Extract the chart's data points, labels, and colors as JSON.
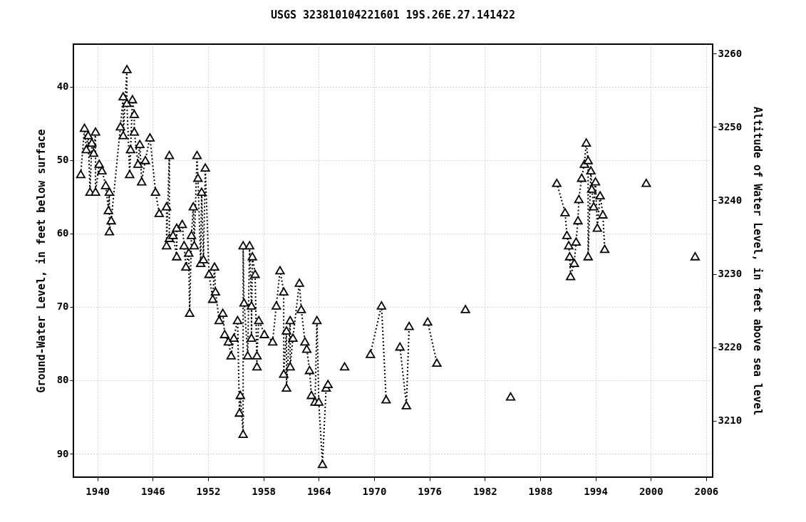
{
  "chart_data": {
    "type": "line",
    "title": "USGS 323810104221601 19S.26E.27.141422",
    "ylabel": "Ground-Water Level, in feet below surface",
    "y2label": "Altitude of Water Level, in feet above sea level",
    "xlim": [
      1937.4,
      2006.7
    ],
    "xticks": [
      1940,
      1946,
      1952,
      1958,
      1964,
      1970,
      1976,
      1982,
      1988,
      1994,
      2000,
      2006
    ],
    "ylim": [
      93.2,
      34.2
    ],
    "yticks": [
      40,
      50,
      60,
      70,
      80,
      90
    ],
    "y2lim": [
      3202.3,
      3261.3
    ],
    "y2ticks": [
      3210,
      3220,
      3230,
      3240,
      3250,
      3260
    ],
    "grid": true,
    "marker": "triangle",
    "line_style": "dotted",
    "series": [
      {
        "color": "#000000",
        "x": [
          1938.2,
          1938.6,
          1938.8,
          1939.0,
          1939.2,
          1939.4,
          1939.6,
          1939.8,
          1939.8,
          1940.2,
          1940.5,
          1940.9,
          1941.2,
          1941.3,
          1941.3,
          1941.5,
          1942.5,
          1942.8,
          1942.8,
          1943.2,
          1943.2,
          1943.5,
          1943.6,
          1943.8,
          1944.0,
          1944.0,
          1944.4,
          1944.6,
          1944.8,
          1945.2,
          1945.7,
          1946.3,
          1946.7,
          1947.5,
          1947.5,
          1947.8,
          1947.8,
          1948.2,
          1948.6,
          1948.6,
          1949.2,
          1949.4,
          1949.6,
          1949.9,
          1950.0,
          1950.2,
          1950.4,
          1950.5,
          1950.8,
          1950.9,
          1951.2,
          1951.3,
          1951.5,
          1951.7,
          1952.1,
          1952.5,
          1952.7,
          1952.8,
          1953.2,
          1953.6,
          1953.8,
          1954.2,
          1954.5,
          1954.8,
          1955.2,
          1955.4,
          1955.5,
          1955.8,
          1955.8,
          1955.9,
          1956.3,
          1956.5,
          1956.7,
          1956.7,
          1956.8,
          1957.1,
          1957.3,
          1957.3,
          1957.5,
          1958.1,
          1959.0,
          1959.4,
          1959.8,
          1960.2,
          1960.2,
          1960.5,
          1960.5,
          1960.9,
          1960.9,
          1961.2,
          1961.9,
          1962.1,
          1962.5,
          1962.7,
          1963.0,
          1963.2,
          1963.6,
          1963.8,
          1964.0,
          1964.4,
          1964.8,
          1965.0
        ],
        "values": [
          51.9,
          45.6,
          48.5,
          46.6,
          54.3,
          47.6,
          49.0,
          46.1,
          54.3,
          50.5,
          51.4,
          53.4,
          56.8,
          54.3,
          59.7,
          58.2,
          45.4,
          41.3,
          46.6,
          37.6,
          42.2,
          51.9,
          48.5,
          41.7,
          43.7,
          46.1,
          50.5,
          47.8,
          52.9,
          50.0,
          46.9,
          54.3,
          57.2,
          56.3,
          61.6,
          49.3,
          60.6,
          60.2,
          63.1,
          59.2,
          58.7,
          61.6,
          64.5,
          62.6,
          70.8,
          60.2,
          56.3,
          61.6,
          49.3,
          52.4,
          64.0,
          54.3,
          63.5,
          51.0,
          65.5,
          68.9,
          64.5,
          67.9,
          71.8,
          70.8,
          73.7,
          74.7,
          76.6,
          74.2,
          71.8,
          84.4,
          82.0,
          87.3,
          61.6,
          69.4,
          76.6,
          61.6,
          69.8,
          74.2,
          63.1,
          65.5,
          78.1,
          76.6,
          71.8,
          73.7,
          74.7,
          69.8,
          65.0,
          67.9,
          79.1,
          73.2,
          81.0,
          71.8,
          78.1,
          74.2,
          66.7,
          70.3,
          74.7,
          75.7,
          78.6,
          82.0,
          82.9,
          71.8,
          82.9,
          91.4,
          81.0,
          80.5
        ]
      },
      {
        "color": "#000000",
        "x": [
          1966.8
        ],
        "values": [
          78.1
        ]
      },
      {
        "color": "#000000",
        "x": [
          1969.6,
          1970.8,
          1971.3
        ],
        "values": [
          76.4,
          69.8,
          82.6
        ]
      },
      {
        "color": "#000000",
        "x": [
          1972.8,
          1973.5,
          1973.8
        ],
        "values": [
          75.4,
          83.4,
          72.6
        ]
      },
      {
        "color": "#000000",
        "x": [
          1975.8,
          1976.8
        ],
        "values": [
          72.0,
          77.6
        ]
      },
      {
        "color": "#000000",
        "x": [
          1979.9
        ],
        "values": [
          70.3
        ]
      },
      {
        "color": "#000000",
        "x": [
          1984.8
        ],
        "values": [
          82.2
        ]
      },
      {
        "color": "#000000",
        "x": [
          1989.8,
          1990.7,
          1990.9,
          1991.1,
          1991.2,
          1991.3,
          1991.7,
          1991.9,
          1992.1,
          1992.2,
          1992.5,
          1992.8,
          1993.0,
          1993.2,
          1993.2,
          1993.5,
          1993.6,
          1993.8,
          1994.0,
          1994.2,
          1994.5,
          1994.8,
          1995.0
        ],
        "values": [
          53.1,
          57.1,
          60.2,
          61.6,
          63.1,
          65.8,
          64.0,
          61.1,
          58.2,
          55.3,
          52.4,
          50.5,
          47.6,
          50.0,
          63.1,
          51.4,
          53.9,
          56.3,
          52.9,
          59.2,
          54.8,
          57.4,
          62.1
        ]
      },
      {
        "color": "#000000",
        "x": [
          1999.5
        ],
        "values": [
          53.1
        ]
      },
      {
        "color": "#000000",
        "x": [
          2004.8
        ],
        "values": [
          63.1
        ]
      }
    ]
  }
}
